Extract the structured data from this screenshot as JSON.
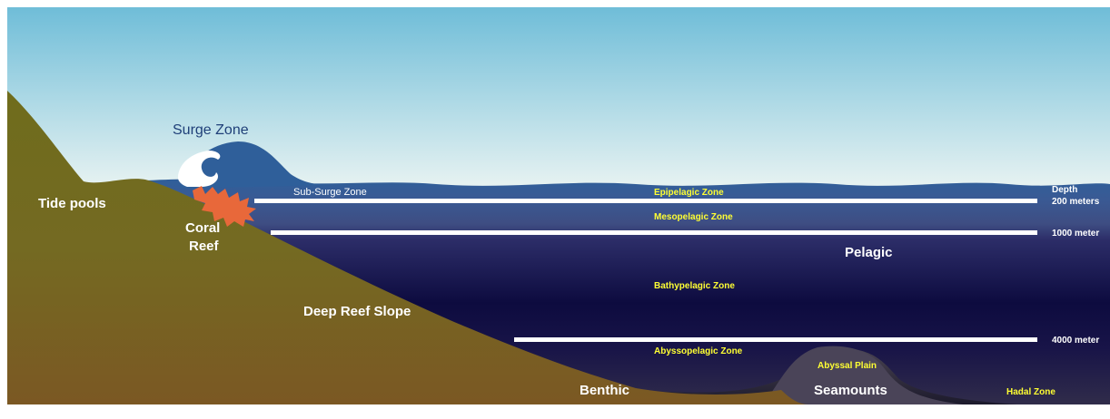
{
  "labels": {
    "surge_zone": "Surge Zone",
    "sub_surge_zone": "Sub-Surge Zone",
    "tide_pools": "Tide pools",
    "coral_reef_line1": "Coral",
    "coral_reef_line2": "Reef",
    "deep_reef_slope": "Deep Reef Slope",
    "benthic": "Benthic",
    "seamounts": "Seamounts",
    "pelagic": "Pelagic",
    "epipelagic_zone": "Epipelagic Zone",
    "mesopelagic_zone": "Mesopelagic Zone",
    "bathypelagic_zone": "Bathypelagic Zone",
    "abyssopelagic_zone": "Abyssopelagic Zone",
    "abyssal_plain": "Abyssal Plain",
    "hadal_zone": "Hadal Zone"
  },
  "depth_scale": {
    "header": "Depth",
    "marks": [
      "200 meters",
      "1000 meter",
      "4000 meter"
    ]
  },
  "colors": {
    "sky_top": "#6fbdd8",
    "sky_bottom": "#e8f3f2",
    "surface_water": "#2f5f9a",
    "mid_water": "#3e4d82",
    "deep_water": "#0d0b3f",
    "land_top": "#726d1e",
    "land_bottom": "#7a5a22",
    "coral": "#e8683a",
    "zone_label": "#ffff33"
  }
}
